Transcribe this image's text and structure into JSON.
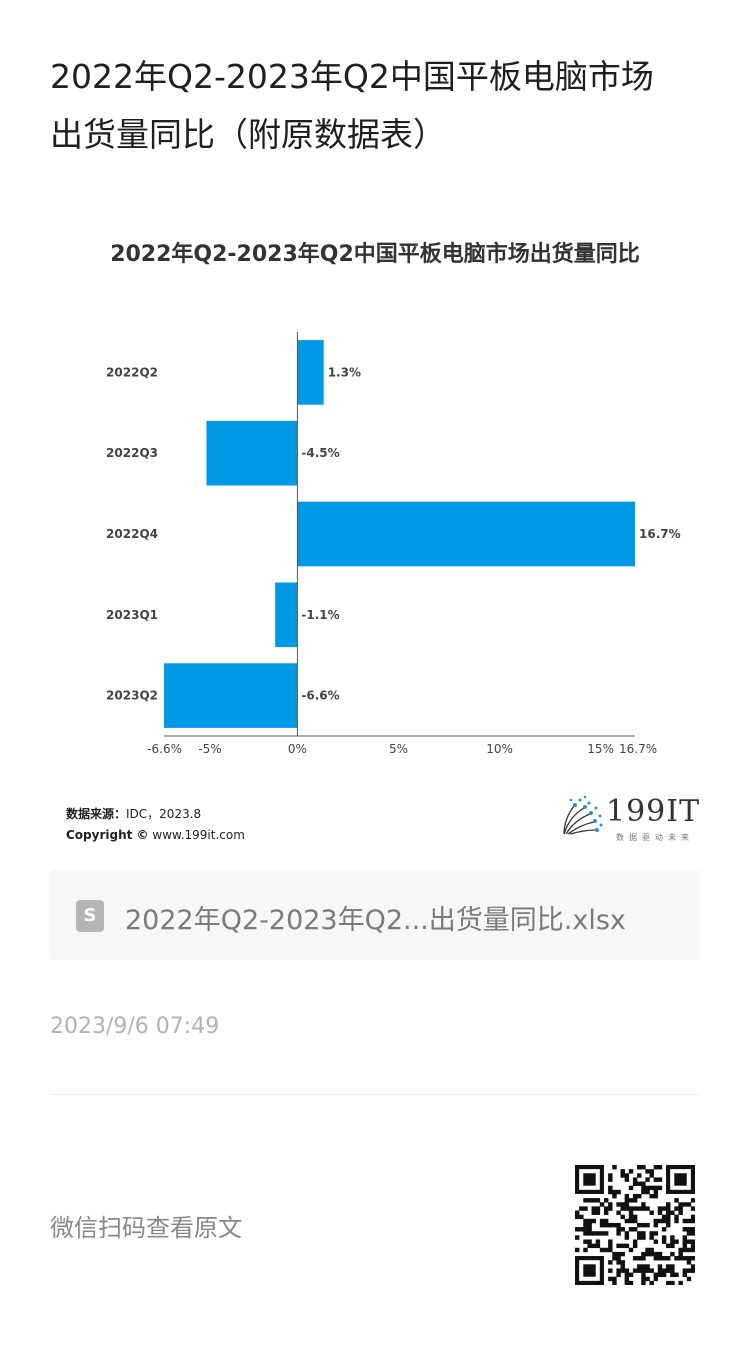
{
  "article": {
    "title_line1": "2022年Q2-2023年Q2中国平板电脑市场",
    "title_line2": "出货量同比（附原数据表）"
  },
  "chart_data": {
    "type": "bar",
    "orientation": "horizontal",
    "title": "2022年Q2-2023年Q2中国平板电脑市场出货量同比",
    "categories": [
      "2022Q2",
      "2022Q3",
      "2022Q4",
      "2023Q1",
      "2023Q2"
    ],
    "values": [
      1.3,
      -4.5,
      16.7,
      -1.1,
      -6.6
    ],
    "data_labels": [
      "1.3%",
      "-4.5%",
      "16.7%",
      "-1.1%",
      "-6.6%"
    ],
    "x_ticks": [
      -6.6,
      -5,
      0,
      5,
      10,
      15,
      16.7
    ],
    "x_tick_labels": [
      "-6.6%",
      "-5%",
      "0%",
      "5%",
      "10%",
      "15%",
      "16.7%"
    ],
    "xlim": [
      -6.6,
      16.7
    ],
    "bar_color": "#0099e5",
    "grid": false,
    "legend": "none"
  },
  "source": {
    "label": "数据来源：",
    "value": "IDC，2023.8",
    "copyright_label": "Copyright ©",
    "copyright_value": "www.199it.com"
  },
  "brand": {
    "name": "199IT",
    "slogan": "数据驱动未来"
  },
  "attachment": {
    "file_name": "2022年Q2-2023年Q2...出货量同比.xlsx",
    "icon_letter": "S"
  },
  "meta": {
    "timestamp": "2023/9/6 07:49"
  },
  "footer": {
    "hint": "微信扫码查看原文"
  },
  "colors": {
    "bar": "#0099e5",
    "file_card_bg": "#f7f7f7",
    "muted_text": "#b2b2b2"
  },
  "icons": {
    "file": "spreadsheet-file-icon",
    "brand": "dandelion-logo-icon",
    "qr": "qr-code-icon"
  }
}
